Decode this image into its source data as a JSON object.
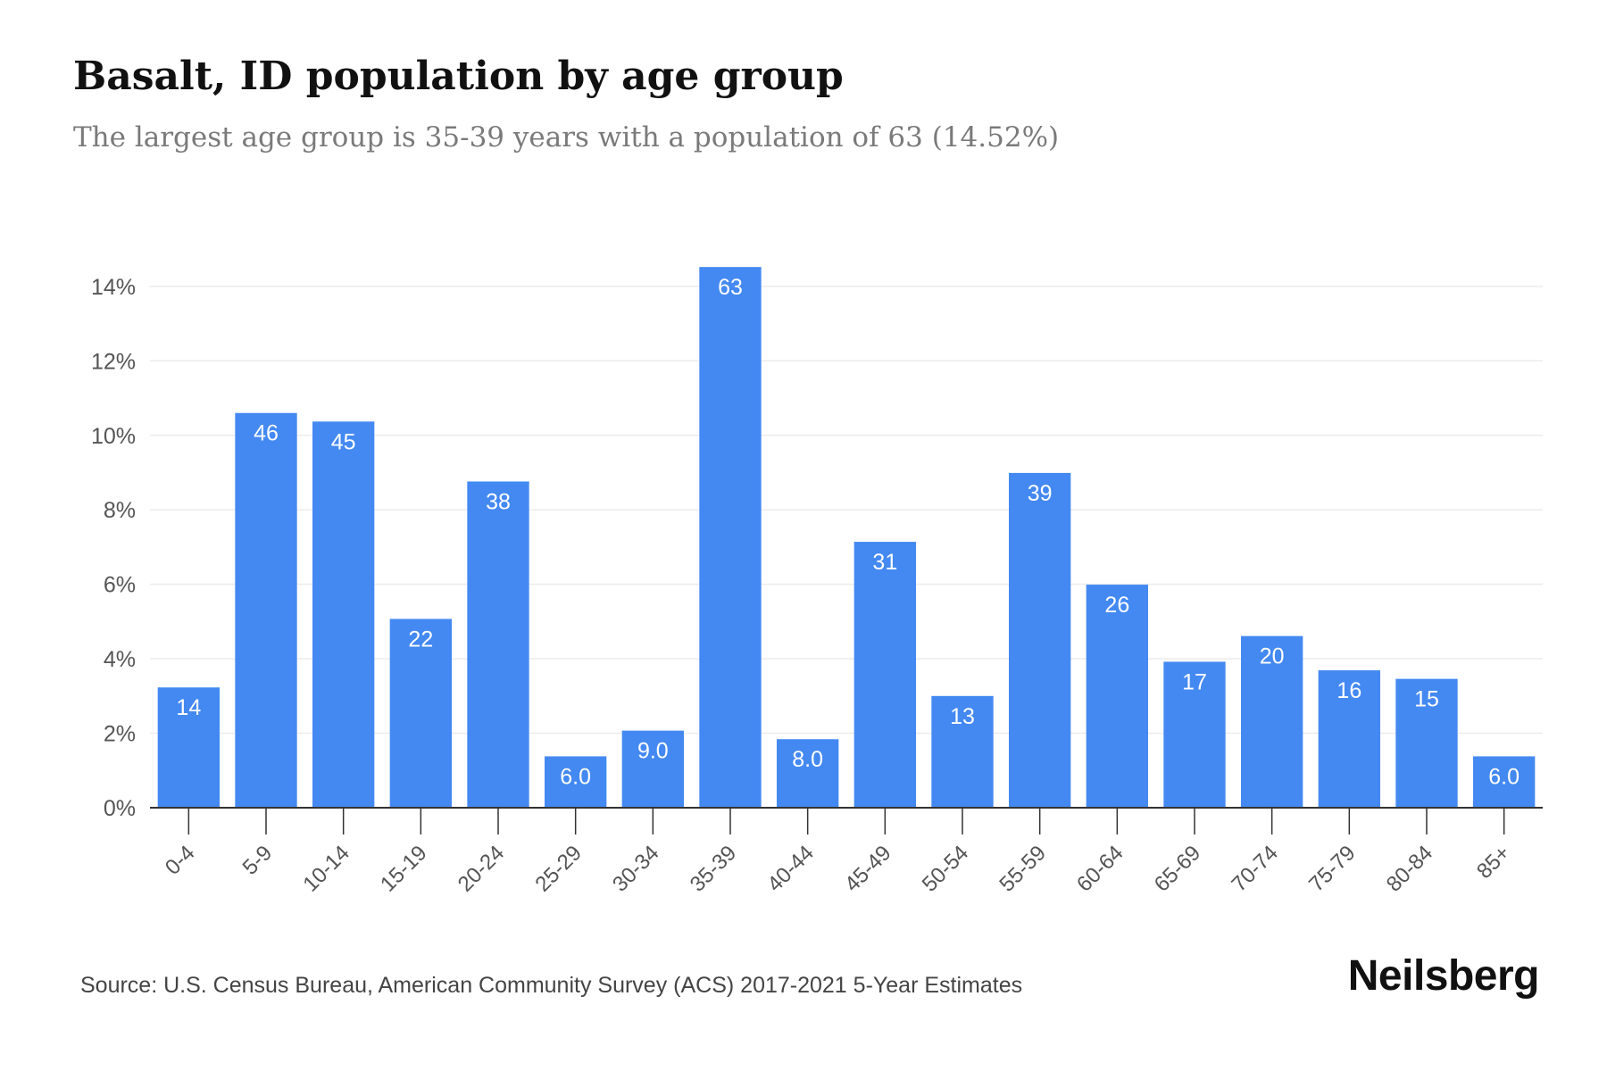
{
  "header": {
    "title": "Basalt, ID population by age group",
    "subtitle": "The largest age group is 35-39 years with a population of 63 (14.52%)"
  },
  "footer": {
    "source": "Source: U.S. Census Bureau, American Community Survey (ACS) 2017-2021 5-Year Estimates",
    "brand": "Neilsberg"
  },
  "colors": {
    "bar": "#4489f2",
    "label_inside": "#ffffff",
    "grid": "#ececec",
    "axis": "#333333",
    "tick_text": "#555555"
  },
  "chart_data": {
    "type": "bar",
    "title": "Basalt, ID population by age group",
    "subtitle": "The largest age group is 35-39 years with a population of 63 (14.52%)",
    "xlabel": "",
    "ylabel": "",
    "categories": [
      "0-4",
      "5-9",
      "10-14",
      "15-19",
      "20-24",
      "25-29",
      "30-34",
      "35-39",
      "40-44",
      "45-49",
      "50-54",
      "55-59",
      "60-64",
      "65-69",
      "70-74",
      "75-79",
      "80-84",
      "85+"
    ],
    "series": [
      {
        "values_percent": [
          3.23,
          10.6,
          10.37,
          5.07,
          8.76,
          1.38,
          2.07,
          14.52,
          1.84,
          7.14,
          3.0,
          8.99,
          5.99,
          3.92,
          4.61,
          3.69,
          3.46,
          1.38
        ],
        "data_labels": [
          "14",
          "46",
          "45",
          "22",
          "38",
          "6.0",
          "9.0",
          "63",
          "8.0",
          "31",
          "13",
          "39",
          "26",
          "17",
          "20",
          "16",
          "15",
          "6.0"
        ]
      }
    ],
    "y_ticks": [
      "0%",
      "2%",
      "4%",
      "6%",
      "8%",
      "10%",
      "12%",
      "14%"
    ],
    "y_tick_values": [
      0,
      2,
      4,
      6,
      8,
      10,
      12,
      14
    ],
    "ylim": [
      0,
      14.5
    ],
    "grid": true,
    "legend": "none"
  }
}
